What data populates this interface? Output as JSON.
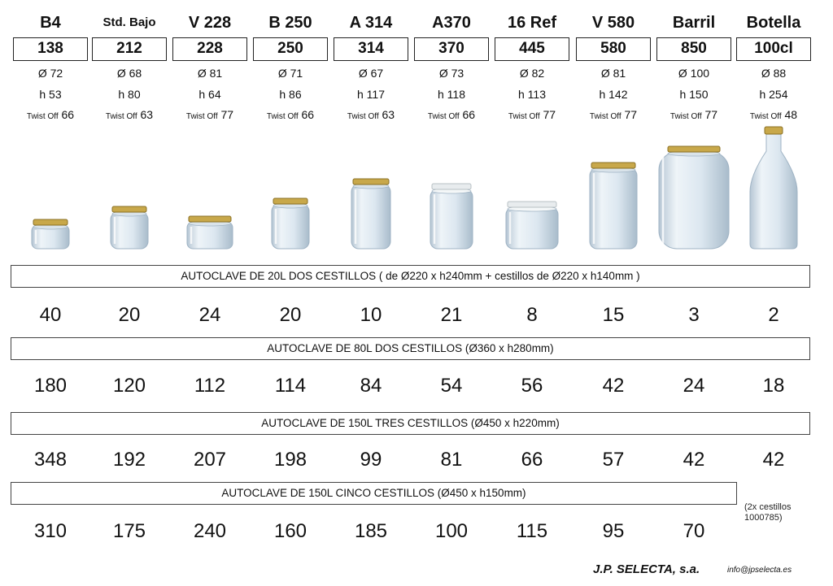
{
  "products": [
    {
      "name": "B4",
      "code": "138",
      "diameter": "Ø 72",
      "height": "h 53",
      "twist_label": "Twist Off",
      "twist": "66"
    },
    {
      "name": "Std. Bajo",
      "code": "212",
      "diameter": "Ø 68",
      "height": "h 80",
      "twist_label": "Twist Off",
      "twist": "63"
    },
    {
      "name": "V 228",
      "code": "228",
      "diameter": "Ø 81",
      "height": "h 64",
      "twist_label": "Twist Off",
      "twist": "77"
    },
    {
      "name": "B 250",
      "code": "250",
      "diameter": "Ø 71",
      "height": "h 86",
      "twist_label": "Twist Off",
      "twist": "66"
    },
    {
      "name": "A 314",
      "code": "314",
      "diameter": "Ø 67",
      "height": "h 117",
      "twist_label": "Twist Off",
      "twist": "63"
    },
    {
      "name": "A370",
      "code": "370",
      "diameter": "Ø 73",
      "height": "h 118",
      "twist_label": "Twist Off",
      "twist": "66"
    },
    {
      "name": "16 Ref",
      "code": "445",
      "diameter": "Ø 82",
      "height": "h 113",
      "twist_label": "Twist Off",
      "twist": "77"
    },
    {
      "name": "V 580",
      "code": "580",
      "diameter": "Ø 81",
      "height": "h 142",
      "twist_label": "Twist Off",
      "twist": "77"
    },
    {
      "name": "Barril",
      "code": "850",
      "diameter": "Ø 100",
      "height": "h 150",
      "twist_label": "Twist Off",
      "twist": "77"
    },
    {
      "name": "Botella",
      "code": "100cl",
      "diameter": "Ø 88",
      "height": "h 254",
      "twist_label": "Twist Off",
      "twist": "48"
    }
  ],
  "sections": [
    {
      "title": "AUTOCLAVE DE 20L DOS CESTILLOS ( de Ø220 x h240mm + cestillos de Ø220 x h140mm )",
      "values": [
        "40",
        "20",
        "24",
        "20",
        "10",
        "21",
        "8",
        "15",
        "3",
        "2"
      ]
    },
    {
      "title": "AUTOCLAVE DE 80L DOS CESTILLOS (Ø360 x h280mm)",
      "values": [
        "180",
        "120",
        "112",
        "114",
        "84",
        "54",
        "56",
        "42",
        "24",
        "18"
      ]
    },
    {
      "title": "AUTOCLAVE DE 150L TRES CESTILLOS (Ø450 x h220mm)",
      "values": [
        "348",
        "192",
        "207",
        "198",
        "99",
        "81",
        "66",
        "57",
        "42",
        "42"
      ]
    },
    {
      "title": "AUTOCLAVE DE 150L CINCO CESTILLOS (Ø450 x h150mm)",
      "values": [
        "310",
        "175",
        "240",
        "160",
        "185",
        "100",
        "115",
        "95",
        "70"
      ]
    }
  ],
  "note": {
    "line1": "(2x cestillos",
    "line2": "1000785)"
  },
  "footer": {
    "company": "J.P. SELECTA, s.a.",
    "email": "info@jpselecta.es"
  },
  "colors": {
    "lid": "#c8a84a",
    "lid_dark": "#8a7024",
    "glass": "#dce7f0",
    "glass_edge": "#9fb3c4",
    "white_lid": "#e8ecee"
  }
}
